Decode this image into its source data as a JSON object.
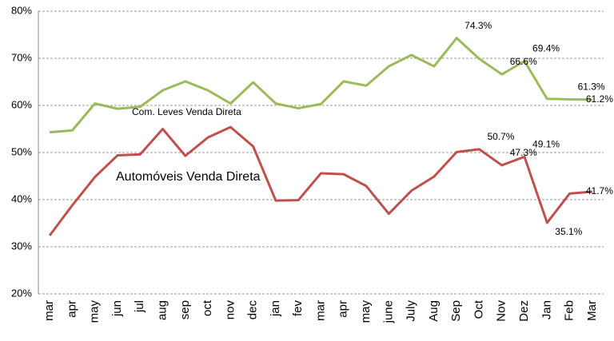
{
  "chart_data": {
    "type": "line",
    "categories": [
      "mar",
      "apr",
      "may",
      "jun",
      "jul",
      "aug",
      "sep",
      "oct",
      "nov",
      "dec",
      "jan",
      "fev",
      "mar",
      "apr",
      "may",
      "june",
      "July",
      "Aug",
      "Sep",
      "Oct",
      "Nov",
      "Dez",
      "Jan",
      "Feb",
      "Mar"
    ],
    "series": [
      {
        "name": "Com. Leves Venda Direta",
        "color": "#9bbb59",
        "values": [
          54.3,
          54.7,
          60.4,
          59.3,
          59.7,
          63.2,
          65.1,
          63.2,
          60.4,
          64.9,
          60.4,
          59.4,
          60.3,
          65.1,
          64.2,
          68.3,
          70.7,
          68.3,
          74.3,
          69.9,
          66.6,
          69.4,
          61.4,
          61.3,
          61.2
        ],
        "value_labels": [
          null,
          null,
          null,
          null,
          null,
          null,
          null,
          null,
          null,
          null,
          null,
          null,
          null,
          null,
          null,
          null,
          null,
          null,
          "74.3%",
          null,
          "66.6%",
          "69.4%",
          null,
          "61.3%",
          "61.2%"
        ]
      },
      {
        "name": "Automóveis Venda Direta",
        "color": "#c0504d",
        "values": [
          32.4,
          38.8,
          44.8,
          49.4,
          49.6,
          55.0,
          49.3,
          53.2,
          55.4,
          51.3,
          39.8,
          39.9,
          45.6,
          45.4,
          42.9,
          37.0,
          41.9,
          44.9,
          50.1,
          50.7,
          47.3,
          49.1,
          35.1,
          41.3,
          41.7
        ],
        "value_labels": [
          null,
          null,
          null,
          null,
          null,
          null,
          null,
          null,
          null,
          null,
          null,
          null,
          null,
          null,
          null,
          null,
          null,
          null,
          null,
          "50.7%",
          "47.3%",
          "49.1%",
          "35.1%",
          null,
          "41.7%"
        ]
      }
    ],
    "ylim": [
      20,
      80
    ],
    "yticks": [
      {
        "value": 20,
        "label": "20%"
      },
      {
        "value": 30,
        "label": "30%"
      },
      {
        "value": 40,
        "label": "40%"
      },
      {
        "value": 50,
        "label": "50%"
      },
      {
        "value": 60,
        "label": "60%"
      },
      {
        "value": 70,
        "label": "70%"
      },
      {
        "value": 80,
        "label": "80%"
      }
    ],
    "grid": true
  }
}
